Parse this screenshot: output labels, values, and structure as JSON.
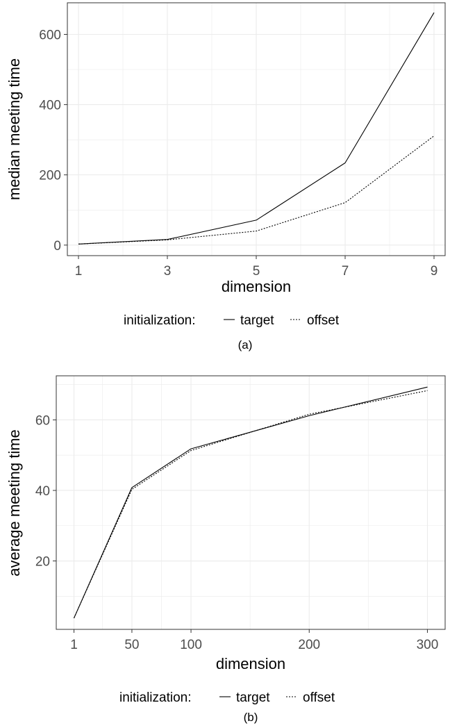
{
  "chart_data": [
    {
      "type": "line",
      "x": [
        1,
        3,
        5,
        7,
        9
      ],
      "series": [
        {
          "name": "target",
          "values": [
            3,
            16,
            71,
            234,
            662
          ],
          "linestyle": "solid"
        },
        {
          "name": "offset",
          "values": [
            3,
            15,
            40,
            121,
            311
          ],
          "linestyle": "dotted"
        }
      ],
      "xlabel": "dimension",
      "ylabel": "median meeting time",
      "xlim": [
        0.75,
        9.25
      ],
      "ylim": [
        -30,
        690
      ],
      "xticks": [
        1,
        3,
        5,
        7,
        9
      ],
      "xtick_labels": [
        "1",
        "3",
        "5",
        "7",
        "9"
      ],
      "xminor": [
        2,
        4,
        6,
        8
      ],
      "yticks": [
        0,
        200,
        400,
        600
      ],
      "ytick_labels": [
        "0",
        "200",
        "400",
        "600"
      ],
      "yminor": [
        100,
        300,
        500
      ],
      "legend_title": "initialization:",
      "legend_position": "bottom",
      "grid": true,
      "caption": "(a)"
    },
    {
      "type": "line",
      "x": [
        1,
        50,
        100,
        200,
        300
      ],
      "series": [
        {
          "name": "target",
          "values": [
            3.8,
            40.8,
            51.8,
            61.2,
            69.3
          ],
          "linestyle": "solid"
        },
        {
          "name": "offset",
          "values": [
            3.8,
            40.3,
            51.3,
            61.6,
            68.3
          ],
          "linestyle": "dotted"
        }
      ],
      "xlabel": "dimension",
      "ylabel": "average meeting time",
      "xlim": [
        -14,
        315
      ],
      "ylim": [
        0.6,
        72.5
      ],
      "xticks": [
        1,
        50,
        100,
        200,
        300
      ],
      "xtick_labels": [
        "1",
        "50",
        "100",
        "200",
        "300"
      ],
      "xminor": [
        25,
        75,
        150,
        250
      ],
      "yticks": [
        20,
        40,
        60
      ],
      "ytick_labels": [
        "20",
        "40",
        "60"
      ],
      "yminor": [
        10,
        30,
        50,
        70
      ],
      "legend_title": "initialization:",
      "legend_position": "bottom",
      "grid": true,
      "caption": "(b)"
    }
  ],
  "colors": {
    "line": "#000000",
    "grid": "#ebebeb",
    "panel_border": "#333333",
    "tick_label": "#4d4d4d"
  }
}
